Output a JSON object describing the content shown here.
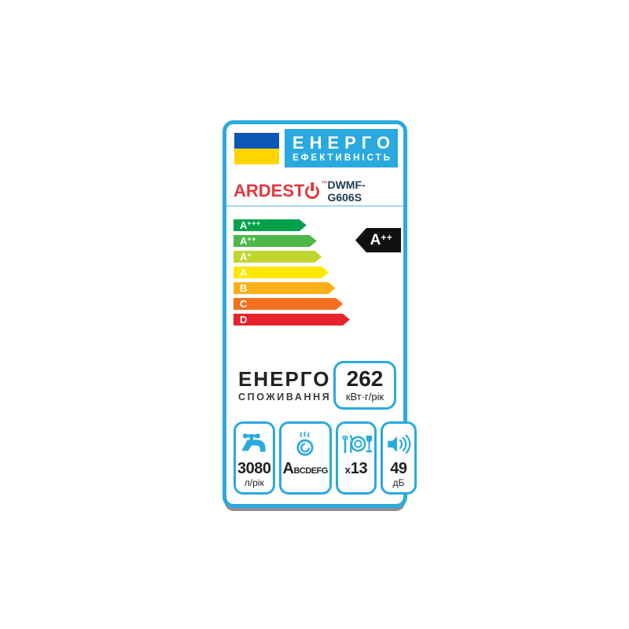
{
  "accent_color": "#2aa9e0",
  "header": {
    "flag": {
      "top_color": "#0b57b5",
      "bottom_color": "#ffd500"
    },
    "title_line1": "ЕНЕРГО",
    "title_line2": "ЕФЕКТИВНІСТЬ"
  },
  "brand": {
    "name_prefix": "ARDEST",
    "power_o_symbol": "O",
    "trademark": "™",
    "logo_color": "#e0393e",
    "model": "DWMF-G606S"
  },
  "ratings": [
    {
      "label": "A",
      "sup": "+++",
      "color": "#00a14b",
      "width_pct": 43
    },
    {
      "label": "A",
      "sup": "++",
      "color": "#4db848",
      "width_pct": 49
    },
    {
      "label": "A",
      "sup": "+",
      "color": "#bfd630",
      "width_pct": 52
    },
    {
      "label": "A",
      "sup": "",
      "color": "#ffe800",
      "width_pct": 56
    },
    {
      "label": "B",
      "sup": "",
      "color": "#fbaf17",
      "width_pct": 60
    },
    {
      "label": "C",
      "sup": "",
      "color": "#f4701f",
      "width_pct": 64.5
    },
    {
      "label": "D",
      "sup": "",
      "color": "#e8222a",
      "width_pct": 68.5
    }
  ],
  "indicator": {
    "label": "A",
    "sup": "++",
    "bg": "#101010"
  },
  "consumption": {
    "title_line1": "ЕНЕРГО",
    "title_line2": "СПОЖИВАННЯ",
    "value": "262",
    "unit": "кВт·г/рік"
  },
  "metrics": {
    "water": {
      "icon": "water-tap-icon",
      "value": "3080",
      "unit": "л/рік"
    },
    "drying": {
      "icon": "drying-class-icon",
      "value_main": "A",
      "value_rest": "BCDEFG"
    },
    "capacity": {
      "icon": "place-settings-icon",
      "prefix": "x",
      "value": "13"
    },
    "noise": {
      "icon": "noise-level-icon",
      "value": "49",
      "unit": "дБ"
    }
  }
}
